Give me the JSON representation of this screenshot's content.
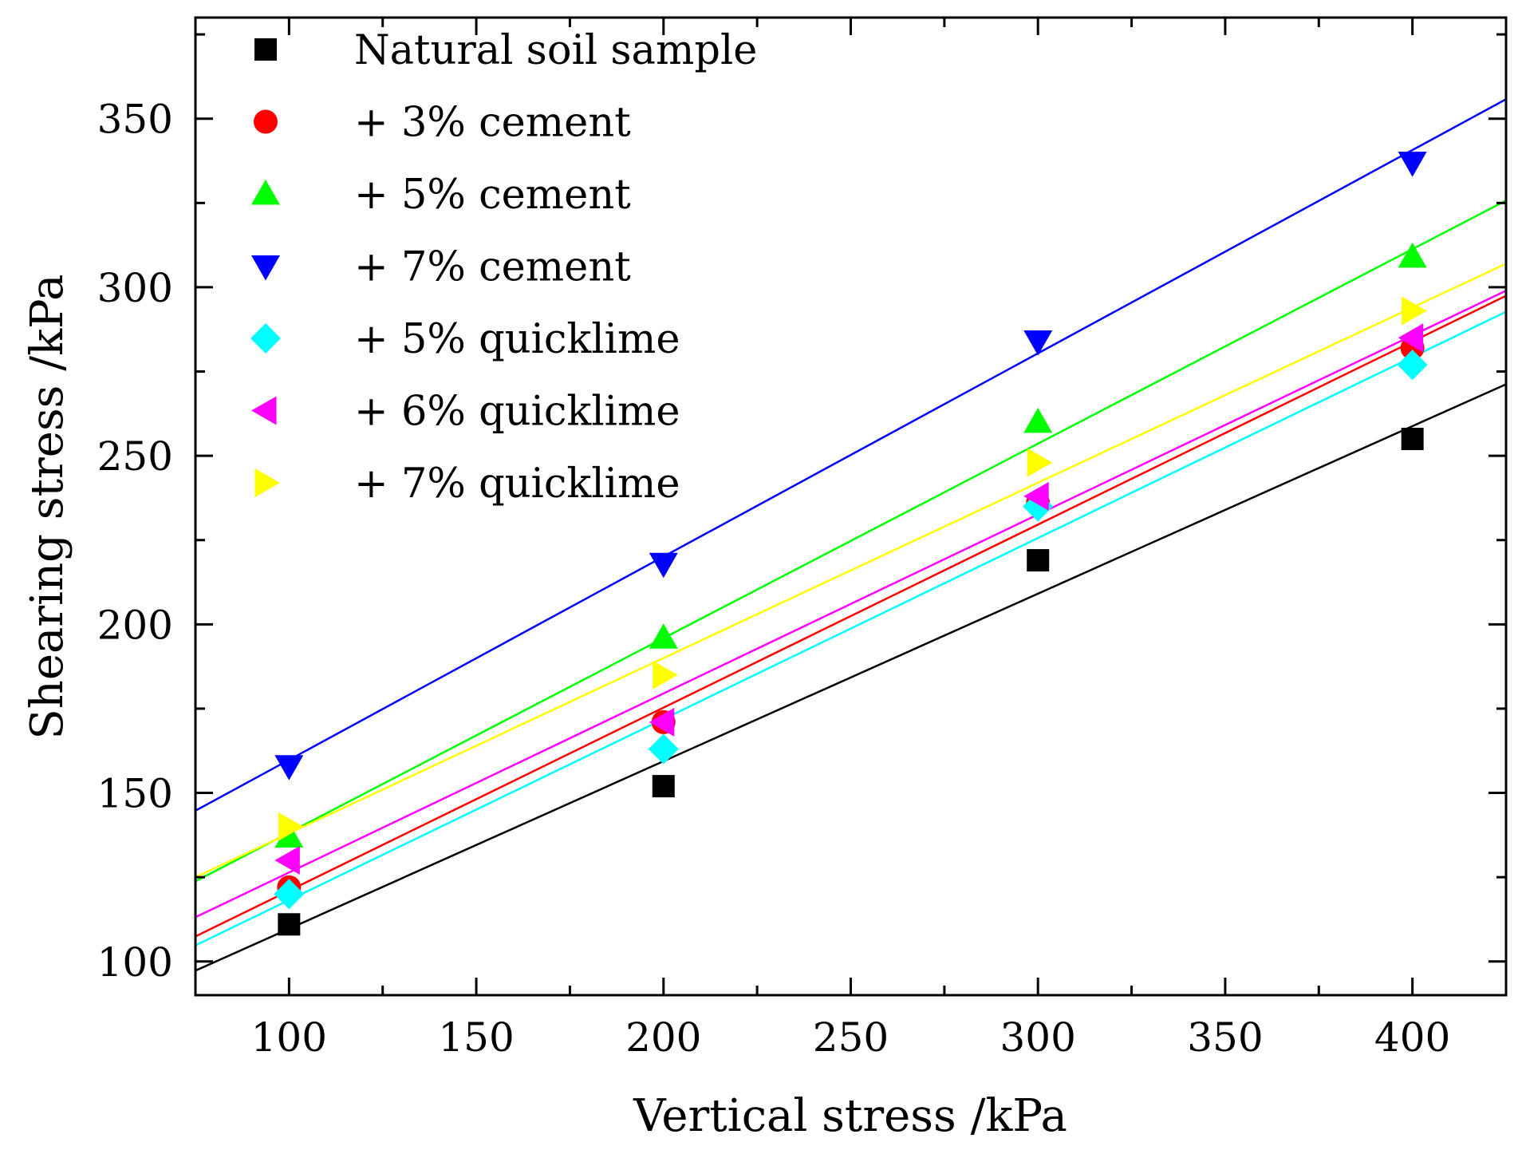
{
  "chart_data": {
    "type": "scatter",
    "title": "",
    "xlabel": "Vertical stress /kPa",
    "ylabel": "Shearing stress /kPa",
    "xlim": [
      75,
      425
    ],
    "ylim": [
      90,
      380
    ],
    "x_ticks": [
      100,
      150,
      200,
      250,
      300,
      350,
      400
    ],
    "y_ticks": [
      100,
      150,
      200,
      250,
      300,
      350
    ],
    "grid": false,
    "legend_position": "top-left",
    "x": [
      100,
      200,
      300,
      400
    ],
    "series": [
      {
        "name": "Natural soil sample",
        "color": "#000000",
        "marker": "square",
        "values": [
          111,
          152,
          219,
          255
        ],
        "fit": {
          "slope": 0.497,
          "intercept": 60
        }
      },
      {
        "name": "+ 3% cement",
        "color": "#ff0000",
        "marker": "circle",
        "values": [
          122,
          171,
          236,
          282
        ],
        "fit": {
          "slope": 0.543,
          "intercept": 66.7
        }
      },
      {
        "name": "+ 5% cement",
        "color": "#00ff00",
        "marker": "triangle-up",
        "values": [
          137,
          196,
          260,
          309
        ],
        "fit": {
          "slope": 0.577,
          "intercept": 80.5
        }
      },
      {
        "name": "+ 7% cement",
        "color": "#0000ff",
        "marker": "triangle-down",
        "values": [
          158,
          218,
          284,
          337
        ],
        "fit": {
          "slope": 0.603,
          "intercept": 99.5
        }
      },
      {
        "name": "+ 5% quicklime",
        "color": "#00ffff",
        "marker": "diamond",
        "values": [
          120,
          163,
          235,
          277
        ],
        "fit": {
          "slope": 0.537,
          "intercept": 64.5
        }
      },
      {
        "name": "+ 6% quicklime",
        "color": "#ff00ff",
        "marker": "triangle-left",
        "values": [
          130,
          171,
          238,
          285
        ],
        "fit": {
          "slope": 0.531,
          "intercept": 73.3
        }
      },
      {
        "name": "+ 7% quicklime",
        "color": "#ffff00",
        "marker": "triangle-right",
        "values": [
          140,
          185,
          248,
          293
        ],
        "fit": {
          "slope": 0.52,
          "intercept": 86
        }
      }
    ]
  }
}
